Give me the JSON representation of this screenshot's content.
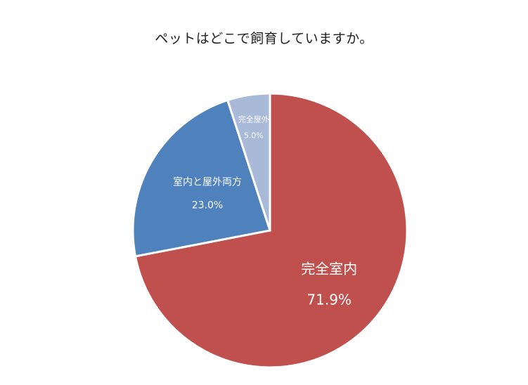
{
  "chart_data": {
    "type": "pie",
    "title": "ペットはどこで飼育していますか。",
    "slices": [
      {
        "label": "完全室内",
        "value": 71.9,
        "value_label": "71.9%",
        "color": "#C0504D"
      },
      {
        "label": "室内と屋外両方",
        "value": 23.0,
        "value_label": "23.0%",
        "color": "#4F81BD"
      },
      {
        "label": "完全屋外",
        "value": 5.0,
        "value_label": "5.0%",
        "color": "#A9B9D8"
      }
    ],
    "start_angle_deg": 0,
    "direction": "clockwise",
    "legend": "none"
  }
}
